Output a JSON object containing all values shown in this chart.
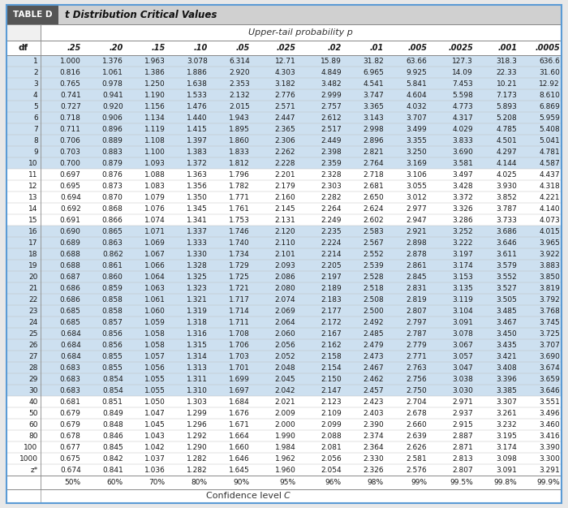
{
  "title_label": "TABLE D",
  "title_text": "t Distribution Critical Values",
  "subtitle": "Upper-tail probability p",
  "col_headers": [
    "df",
    ".25",
    ".20",
    ".15",
    ".10",
    ".05",
    ".025",
    ".02",
    ".01",
    ".005",
    ".0025",
    ".001",
    ".0005"
  ],
  "bottom_row1": [
    "",
    "50%",
    "60%",
    "70%",
    "80%",
    "90%",
    "95%",
    "96%",
    "98%",
    "99%",
    "99.5%",
    "99.8%",
    "99.9%"
  ],
  "bottom_row2": "Confidence level C",
  "rows": [
    [
      "1",
      "1.000",
      "1.376",
      "1.963",
      "3.078",
      "6.314",
      "12.71",
      "15.89",
      "31.82",
      "63.66",
      "127.3",
      "318.3",
      "636.6"
    ],
    [
      "2",
      "0.816",
      "1.061",
      "1.386",
      "1.886",
      "2.920",
      "4.303",
      "4.849",
      "6.965",
      "9.925",
      "14.09",
      "22.33",
      "31.60"
    ],
    [
      "3",
      "0.765",
      "0.978",
      "1.250",
      "1.638",
      "2.353",
      "3.182",
      "3.482",
      "4.541",
      "5.841",
      "7.453",
      "10.21",
      "12.92"
    ],
    [
      "4",
      "0.741",
      "0.941",
      "1.190",
      "1.533",
      "2.132",
      "2.776",
      "2.999",
      "3.747",
      "4.604",
      "5.598",
      "7.173",
      "8.610"
    ],
    [
      "5",
      "0.727",
      "0.920",
      "1.156",
      "1.476",
      "2.015",
      "2.571",
      "2.757",
      "3.365",
      "4.032",
      "4.773",
      "5.893",
      "6.869"
    ],
    [
      "6",
      "0.718",
      "0.906",
      "1.134",
      "1.440",
      "1.943",
      "2.447",
      "2.612",
      "3.143",
      "3.707",
      "4.317",
      "5.208",
      "5.959"
    ],
    [
      "7",
      "0.711",
      "0.896",
      "1.119",
      "1.415",
      "1.895",
      "2.365",
      "2.517",
      "2.998",
      "3.499",
      "4.029",
      "4.785",
      "5.408"
    ],
    [
      "8",
      "0.706",
      "0.889",
      "1.108",
      "1.397",
      "1.860",
      "2.306",
      "2.449",
      "2.896",
      "3.355",
      "3.833",
      "4.501",
      "5.041"
    ],
    [
      "9",
      "0.703",
      "0.883",
      "1.100",
      "1.383",
      "1.833",
      "2.262",
      "2.398",
      "2.821",
      "3.250",
      "3.690",
      "4.297",
      "4.781"
    ],
    [
      "10",
      "0.700",
      "0.879",
      "1.093",
      "1.372",
      "1.812",
      "2.228",
      "2.359",
      "2.764",
      "3.169",
      "3.581",
      "4.144",
      "4.587"
    ],
    [
      "11",
      "0.697",
      "0.876",
      "1.088",
      "1.363",
      "1.796",
      "2.201",
      "2.328",
      "2.718",
      "3.106",
      "3.497",
      "4.025",
      "4.437"
    ],
    [
      "12",
      "0.695",
      "0.873",
      "1.083",
      "1.356",
      "1.782",
      "2.179",
      "2.303",
      "2.681",
      "3.055",
      "3.428",
      "3.930",
      "4.318"
    ],
    [
      "13",
      "0.694",
      "0.870",
      "1.079",
      "1.350",
      "1.771",
      "2.160",
      "2.282",
      "2.650",
      "3.012",
      "3.372",
      "3.852",
      "4.221"
    ],
    [
      "14",
      "0.692",
      "0.868",
      "1.076",
      "1.345",
      "1.761",
      "2.145",
      "2.264",
      "2.624",
      "2.977",
      "3.326",
      "3.787",
      "4.140"
    ],
    [
      "15",
      "0.691",
      "0.866",
      "1.074",
      "1.341",
      "1.753",
      "2.131",
      "2.249",
      "2.602",
      "2.947",
      "3.286",
      "3.733",
      "4.073"
    ],
    [
      "16",
      "0.690",
      "0.865",
      "1.071",
      "1.337",
      "1.746",
      "2.120",
      "2.235",
      "2.583",
      "2.921",
      "3.252",
      "3.686",
      "4.015"
    ],
    [
      "17",
      "0.689",
      "0.863",
      "1.069",
      "1.333",
      "1.740",
      "2.110",
      "2.224",
      "2.567",
      "2.898",
      "3.222",
      "3.646",
      "3.965"
    ],
    [
      "18",
      "0.688",
      "0.862",
      "1.067",
      "1.330",
      "1.734",
      "2.101",
      "2.214",
      "2.552",
      "2.878",
      "3.197",
      "3.611",
      "3.922"
    ],
    [
      "19",
      "0.688",
      "0.861",
      "1.066",
      "1.328",
      "1.729",
      "2.093",
      "2.205",
      "2.539",
      "2.861",
      "3.174",
      "3.579",
      "3.883"
    ],
    [
      "20",
      "0.687",
      "0.860",
      "1.064",
      "1.325",
      "1.725",
      "2.086",
      "2.197",
      "2.528",
      "2.845",
      "3.153",
      "3.552",
      "3.850"
    ],
    [
      "21",
      "0.686",
      "0.859",
      "1.063",
      "1.323",
      "1.721",
      "2.080",
      "2.189",
      "2.518",
      "2.831",
      "3.135",
      "3.527",
      "3.819"
    ],
    [
      "22",
      "0.686",
      "0.858",
      "1.061",
      "1.321",
      "1.717",
      "2.074",
      "2.183",
      "2.508",
      "2.819",
      "3.119",
      "3.505",
      "3.792"
    ],
    [
      "23",
      "0.685",
      "0.858",
      "1.060",
      "1.319",
      "1.714",
      "2.069",
      "2.177",
      "2.500",
      "2.807",
      "3.104",
      "3.485",
      "3.768"
    ],
    [
      "24",
      "0.685",
      "0.857",
      "1.059",
      "1.318",
      "1.711",
      "2.064",
      "2.172",
      "2.492",
      "2.797",
      "3.091",
      "3.467",
      "3.745"
    ],
    [
      "25",
      "0.684",
      "0.856",
      "1.058",
      "1.316",
      "1.708",
      "2.060",
      "2.167",
      "2.485",
      "2.787",
      "3.078",
      "3.450",
      "3.725"
    ],
    [
      "26",
      "0.684",
      "0.856",
      "1.058",
      "1.315",
      "1.706",
      "2.056",
      "2.162",
      "2.479",
      "2.779",
      "3.067",
      "3.435",
      "3.707"
    ],
    [
      "27",
      "0.684",
      "0.855",
      "1.057",
      "1.314",
      "1.703",
      "2.052",
      "2.158",
      "2.473",
      "2.771",
      "3.057",
      "3.421",
      "3.690"
    ],
    [
      "28",
      "0.683",
      "0.855",
      "1.056",
      "1.313",
      "1.701",
      "2.048",
      "2.154",
      "2.467",
      "2.763",
      "3.047",
      "3.408",
      "3.674"
    ],
    [
      "29",
      "0.683",
      "0.854",
      "1.055",
      "1.311",
      "1.699",
      "2.045",
      "2.150",
      "2.462",
      "2.756",
      "3.038",
      "3.396",
      "3.659"
    ],
    [
      "30",
      "0.683",
      "0.854",
      "1.055",
      "1.310",
      "1.697",
      "2.042",
      "2.147",
      "2.457",
      "2.750",
      "3.030",
      "3.385",
      "3.646"
    ],
    [
      "40",
      "0.681",
      "0.851",
      "1.050",
      "1.303",
      "1.684",
      "2.021",
      "2.123",
      "2.423",
      "2.704",
      "2.971",
      "3.307",
      "3.551"
    ],
    [
      "50",
      "0.679",
      "0.849",
      "1.047",
      "1.299",
      "1.676",
      "2.009",
      "2.109",
      "2.403",
      "2.678",
      "2.937",
      "3.261",
      "3.496"
    ],
    [
      "60",
      "0.679",
      "0.848",
      "1.045",
      "1.296",
      "1.671",
      "2.000",
      "2.099",
      "2.390",
      "2.660",
      "2.915",
      "3.232",
      "3.460"
    ],
    [
      "80",
      "0.678",
      "0.846",
      "1.043",
      "1.292",
      "1.664",
      "1.990",
      "2.088",
      "2.374",
      "2.639",
      "2.887",
      "3.195",
      "3.416"
    ],
    [
      "100",
      "0.677",
      "0.845",
      "1.042",
      "1.290",
      "1.660",
      "1.984",
      "2.081",
      "2.364",
      "2.626",
      "2.871",
      "3.174",
      "3.390"
    ],
    [
      "1000",
      "0.675",
      "0.842",
      "1.037",
      "1.282",
      "1.646",
      "1.962",
      "2.056",
      "2.330",
      "2.581",
      "2.813",
      "3.098",
      "3.300"
    ],
    [
      "z*",
      "0.674",
      "0.841",
      "1.036",
      "1.282",
      "1.645",
      "1.960",
      "2.054",
      "2.326",
      "2.576",
      "2.807",
      "3.091",
      "3.291"
    ]
  ],
  "shaded_rows": [
    0,
    1,
    2,
    3,
    4,
    5,
    6,
    7,
    8,
    9,
    15,
    16,
    17,
    18,
    19,
    20,
    21,
    22,
    23,
    24,
    25,
    26,
    27,
    28,
    29
  ],
  "shade_color": "#cde0f0",
  "white_color": "#ffffff",
  "outer_bg": "#e8e8e8",
  "border_color": "#5b9bd5",
  "title_bar_bg": "#d0d0d0",
  "table_label_bg": "#555555",
  "table_label_color": "#ffffff",
  "header_line_color": "#888888",
  "divider_color": "#bbbbbb",
  "text_color": "#1a1a1a",
  "subtitle_area_bg": "#f0f0f0"
}
